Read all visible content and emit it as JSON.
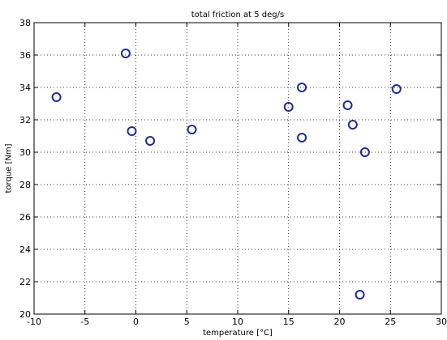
{
  "chart_data": {
    "type": "scatter",
    "title": "total friction at 5 deg/s",
    "xlabel": "temperature [°C]",
    "ylabel": "torque [Nm]",
    "xlim": [
      -10,
      30
    ],
    "ylim": [
      20,
      38
    ],
    "xticks": [
      -10,
      -5,
      0,
      5,
      10,
      15,
      20,
      25,
      30
    ],
    "yticks": [
      20,
      22,
      24,
      26,
      28,
      30,
      32,
      34,
      36,
      38
    ],
    "grid": true,
    "marker": "open-circle",
    "marker_color": "#1f2a9e",
    "series": [
      {
        "points": [
          {
            "x": -7.8,
            "y": 33.4
          },
          {
            "x": -1.0,
            "y": 36.1
          },
          {
            "x": -0.4,
            "y": 31.3
          },
          {
            "x": 1.4,
            "y": 30.7
          },
          {
            "x": 5.5,
            "y": 31.4
          },
          {
            "x": 15.0,
            "y": 32.8
          },
          {
            "x": 16.3,
            "y": 34.0
          },
          {
            "x": 16.3,
            "y": 30.9
          },
          {
            "x": 20.8,
            "y": 32.9
          },
          {
            "x": 21.3,
            "y": 31.7
          },
          {
            "x": 22.5,
            "y": 30.0
          },
          {
            "x": 25.6,
            "y": 33.9
          },
          {
            "x": 22.0,
            "y": 21.2
          }
        ]
      }
    ]
  }
}
